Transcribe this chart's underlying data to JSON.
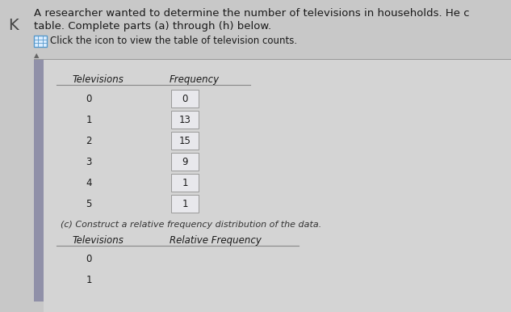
{
  "title_line1": "A researcher wanted to determine the number of televisions in households. He c",
  "title_line2": "table. Complete parts (a) through (h) below.",
  "icon_text": "Click the icon to view the table of television counts.",
  "back_arrow": "←",
  "triangle": "▲",
  "table1_col1_header": "Televisions",
  "table1_col2_header": "Frequency",
  "table1_tv": [
    "0",
    "1",
    "2",
    "3",
    "4",
    "5"
  ],
  "table1_freq": [
    "0",
    "13",
    "15",
    "9",
    "1",
    "1"
  ],
  "part_c_text": "(c) Construct a relative frequency distribution of the data.",
  "table2_col1_header": "Televisions",
  "table2_col2_header": "Relative Frequency",
  "table2_tv": [
    "0",
    "1"
  ],
  "bg_color": "#c8c8c8",
  "panel_color": "#d0d0d0",
  "sidebar_color": "#9090a8",
  "box_color": "#e8e8ec",
  "text_color": "#1a1a1a",
  "line_color": "#888888",
  "font_size": 8.5,
  "font_size_title": 9.5
}
